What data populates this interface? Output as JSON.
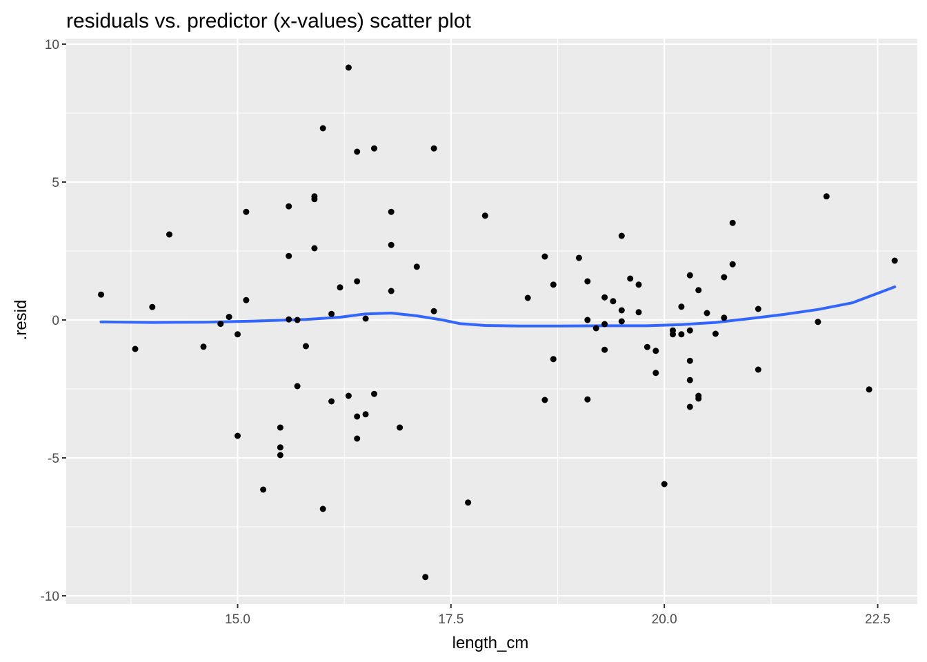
{
  "chart_data": {
    "type": "scatter",
    "title": "residuals vs. predictor (x-values) scatter plot",
    "xlabel": "length_cm",
    "ylabel": ".resid",
    "xlim": [
      13.2,
      23.0
    ],
    "ylim": [
      -10.3,
      10.1
    ],
    "x_ticks": [
      15.0,
      17.5,
      20.0,
      22.5
    ],
    "x_tick_labels": [
      "15.0",
      "17.5",
      "20.0",
      "22.5"
    ],
    "y_ticks": [
      -10,
      -5,
      0,
      5,
      10
    ],
    "y_tick_labels": [
      "-10",
      "-5",
      "0",
      "5",
      "10"
    ],
    "grid": true,
    "panel_background": "#ebebeb",
    "grid_color": "#ffffff",
    "point_color": "#000000",
    "smooth_color": "#3366ff",
    "points": [
      [
        13.4,
        0.92
      ],
      [
        13.8,
        -1.05
      ],
      [
        14.0,
        0.47
      ],
      [
        14.2,
        3.1
      ],
      [
        14.6,
        -0.97
      ],
      [
        14.8,
        -0.14
      ],
      [
        14.9,
        0.11
      ],
      [
        15.0,
        -0.52
      ],
      [
        15.0,
        -4.2
      ],
      [
        15.1,
        3.92
      ],
      [
        15.1,
        0.72
      ],
      [
        15.3,
        -6.15
      ],
      [
        15.5,
        -3.9
      ],
      [
        15.5,
        -4.62
      ],
      [
        15.5,
        -4.9
      ],
      [
        15.6,
        4.12
      ],
      [
        15.6,
        2.32
      ],
      [
        15.6,
        0.02
      ],
      [
        15.7,
        0.0
      ],
      [
        15.7,
        -2.4
      ],
      [
        15.8,
        -0.95
      ],
      [
        15.9,
        4.48
      ],
      [
        15.9,
        4.38
      ],
      [
        15.9,
        2.6
      ],
      [
        16.0,
        6.95
      ],
      [
        16.0,
        -6.85
      ],
      [
        16.1,
        0.22
      ],
      [
        16.1,
        -2.95
      ],
      [
        16.2,
        1.18
      ],
      [
        16.3,
        9.15
      ],
      [
        16.3,
        -2.75
      ],
      [
        16.4,
        6.1
      ],
      [
        16.4,
        1.4
      ],
      [
        16.4,
        -3.5
      ],
      [
        16.4,
        -4.3
      ],
      [
        16.5,
        0.05
      ],
      [
        16.5,
        -3.42
      ],
      [
        16.6,
        6.22
      ],
      [
        16.6,
        -2.68
      ],
      [
        16.8,
        3.92
      ],
      [
        16.8,
        2.72
      ],
      [
        16.8,
        1.05
      ],
      [
        16.9,
        -3.9
      ],
      [
        17.1,
        1.93
      ],
      [
        17.2,
        -9.32
      ],
      [
        17.3,
        6.22
      ],
      [
        17.3,
        0.32
      ],
      [
        17.7,
        -6.62
      ],
      [
        17.9,
        3.78
      ],
      [
        18.4,
        0.8
      ],
      [
        18.6,
        2.3
      ],
      [
        18.6,
        -2.9
      ],
      [
        18.7,
        1.28
      ],
      [
        18.7,
        -1.42
      ],
      [
        19.0,
        2.25
      ],
      [
        19.1,
        1.4
      ],
      [
        19.1,
        0.0
      ],
      [
        19.1,
        -2.88
      ],
      [
        19.2,
        -0.3
      ],
      [
        19.3,
        0.82
      ],
      [
        19.3,
        -0.15
      ],
      [
        19.3,
        -1.08
      ],
      [
        19.4,
        0.68
      ],
      [
        19.5,
        3.05
      ],
      [
        19.5,
        0.35
      ],
      [
        19.5,
        -0.05
      ],
      [
        19.6,
        1.5
      ],
      [
        19.7,
        1.28
      ],
      [
        19.7,
        0.28
      ],
      [
        19.8,
        -0.98
      ],
      [
        19.9,
        -1.12
      ],
      [
        19.9,
        -1.92
      ],
      [
        20.0,
        -5.95
      ],
      [
        20.1,
        -0.38
      ],
      [
        20.1,
        -0.52
      ],
      [
        20.2,
        0.48
      ],
      [
        20.2,
        -0.52
      ],
      [
        20.3,
        1.62
      ],
      [
        20.3,
        -0.38
      ],
      [
        20.3,
        -1.48
      ],
      [
        20.3,
        -2.18
      ],
      [
        20.3,
        -3.15
      ],
      [
        20.4,
        1.08
      ],
      [
        20.4,
        -2.75
      ],
      [
        20.4,
        -2.85
      ],
      [
        20.5,
        0.25
      ],
      [
        20.6,
        -0.5
      ],
      [
        20.7,
        1.55
      ],
      [
        20.7,
        0.08
      ],
      [
        20.8,
        3.52
      ],
      [
        20.8,
        2.02
      ],
      [
        21.1,
        0.4
      ],
      [
        21.1,
        -1.8
      ],
      [
        21.8,
        -0.07
      ],
      [
        21.9,
        4.48
      ],
      [
        22.4,
        -2.52
      ],
      [
        22.7,
        2.15
      ]
    ],
    "smooth": [
      [
        13.4,
        -0.07
      ],
      [
        14.0,
        -0.09
      ],
      [
        14.6,
        -0.08
      ],
      [
        15.2,
        -0.04
      ],
      [
        15.8,
        0.02
      ],
      [
        16.2,
        0.1
      ],
      [
        16.5,
        0.22
      ],
      [
        16.8,
        0.25
      ],
      [
        17.1,
        0.15
      ],
      [
        17.4,
        0.0
      ],
      [
        17.6,
        -0.13
      ],
      [
        17.9,
        -0.2
      ],
      [
        18.3,
        -0.22
      ],
      [
        18.8,
        -0.22
      ],
      [
        19.3,
        -0.21
      ],
      [
        19.8,
        -0.21
      ],
      [
        20.2,
        -0.17
      ],
      [
        20.6,
        -0.09
      ],
      [
        21.0,
        0.05
      ],
      [
        21.4,
        0.2
      ],
      [
        21.8,
        0.38
      ],
      [
        22.2,
        0.62
      ],
      [
        22.7,
        1.2
      ]
    ]
  }
}
